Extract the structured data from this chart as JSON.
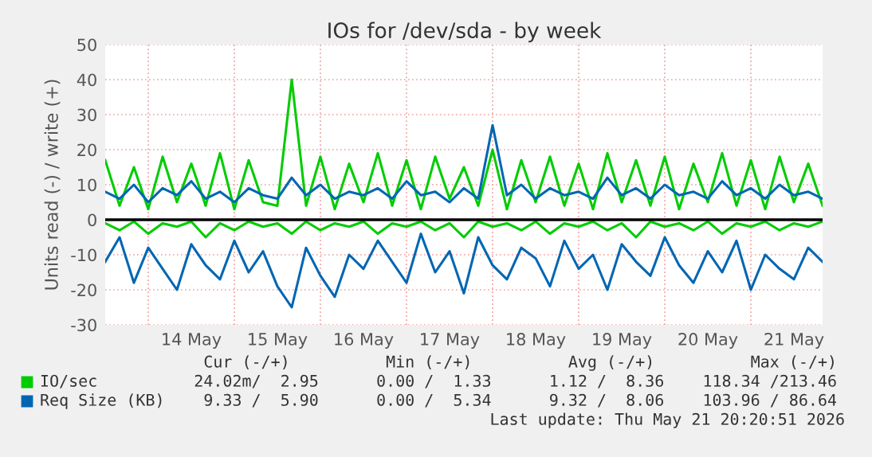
{
  "chart_data": {
    "type": "line",
    "title": "IOs for /dev/sda - by week",
    "ylabel": "Units read (-) / write (+)",
    "x": [
      "2026-05-13T12:00",
      "2026-05-13T16:00",
      "2026-05-13T20:00",
      "2026-05-14T00:00",
      "2026-05-14T04:00",
      "2026-05-14T08:00",
      "2026-05-14T12:00",
      "2026-05-14T16:00",
      "2026-05-14T20:00",
      "2026-05-15T00:00",
      "2026-05-15T04:00",
      "2026-05-15T08:00",
      "2026-05-15T12:00",
      "2026-05-15T16:00",
      "2026-05-15T20:00",
      "2026-05-16T00:00",
      "2026-05-16T04:00",
      "2026-05-16T08:00",
      "2026-05-16T12:00",
      "2026-05-16T16:00",
      "2026-05-16T20:00",
      "2026-05-17T00:00",
      "2026-05-17T04:00",
      "2026-05-17T08:00",
      "2026-05-17T12:00",
      "2026-05-17T16:00",
      "2026-05-17T20:00",
      "2026-05-18T00:00",
      "2026-05-18T04:00",
      "2026-05-18T08:00",
      "2026-05-18T12:00",
      "2026-05-18T16:00",
      "2026-05-18T20:00",
      "2026-05-19T00:00",
      "2026-05-19T04:00",
      "2026-05-19T08:00",
      "2026-05-19T12:00",
      "2026-05-19T16:00",
      "2026-05-19T20:00",
      "2026-05-20T00:00",
      "2026-05-20T04:00",
      "2026-05-20T08:00",
      "2026-05-20T12:00",
      "2026-05-20T16:00",
      "2026-05-20T20:00",
      "2026-05-21T00:00",
      "2026-05-21T04:00",
      "2026-05-21T08:00",
      "2026-05-21T12:00",
      "2026-05-21T16:00",
      "2026-05-21T20:00"
    ],
    "series": [
      {
        "name": "IO/sec",
        "color": "#00cc00",
        "values": [
          17,
          4,
          15,
          3,
          18,
          5,
          16,
          4,
          19,
          3,
          17,
          5,
          4,
          40,
          4,
          18,
          3,
          16,
          5,
          19,
          4,
          17,
          3,
          18,
          6,
          15,
          4,
          20,
          3,
          17,
          5,
          18,
          4,
          16,
          3,
          19,
          5,
          17,
          4,
          18,
          3,
          16,
          5,
          19,
          4,
          17,
          3,
          18,
          5,
          16,
          4
        ]
      },
      {
        "color": "#00cc00",
        "values": [
          -1,
          -3,
          -0.5,
          -4,
          -1,
          -2,
          -0.5,
          -5,
          -1,
          -3,
          -0.5,
          -2,
          -1,
          -4,
          -0.5,
          -3,
          -1,
          -2,
          -0.5,
          -4,
          -1,
          -2,
          -0.5,
          -3,
          -1,
          -5,
          -0.5,
          -2,
          -1,
          -3,
          -0.5,
          -4,
          -1,
          -2,
          -0.5,
          -3,
          -1,
          -5,
          -0.5,
          -2,
          -1,
          -3,
          -0.5,
          -4,
          -1,
          -2,
          -0.5,
          -3,
          -1,
          -2,
          -0.5
        ]
      },
      {
        "name": "Req Size (KB)",
        "color": "#0066b3",
        "values": [
          8,
          6,
          10,
          5,
          9,
          7,
          11,
          6,
          8,
          5,
          9,
          7,
          6,
          12,
          7,
          10,
          6,
          8,
          7,
          9,
          6,
          11,
          7,
          8,
          5,
          9,
          6,
          27,
          7,
          10,
          6,
          9,
          7,
          8,
          6,
          12,
          7,
          9,
          6,
          10,
          7,
          8,
          6,
          11,
          7,
          9,
          6,
          10,
          7,
          8,
          6
        ]
      },
      {
        "color": "#0066b3",
        "values": [
          -12,
          -5,
          -18,
          -8,
          -14,
          -20,
          -7,
          -13,
          -17,
          -6,
          -15,
          -9,
          -19,
          -25,
          -8,
          -16,
          -22,
          -10,
          -14,
          -6,
          -12,
          -18,
          -4,
          -15,
          -9,
          -21,
          -5,
          -13,
          -17,
          -8,
          -11,
          -19,
          -6,
          -14,
          -10,
          -20,
          -7,
          -12,
          -16,
          -5,
          -13,
          -18,
          -9,
          -15,
          -6,
          -20,
          -10,
          -14,
          -17,
          -8,
          -12
        ]
      }
    ],
    "xlim": [
      "2026-05-13T12:00",
      "2026-05-21T20:00"
    ],
    "xticks": [
      {
        "value": "2026-05-14T12:00",
        "label": "14 May"
      },
      {
        "value": "2026-05-15T12:00",
        "label": "15 May"
      },
      {
        "value": "2026-05-16T12:00",
        "label": "16 May"
      },
      {
        "value": "2026-05-17T12:00",
        "label": "17 May"
      },
      {
        "value": "2026-05-18T12:00",
        "label": "18 May"
      },
      {
        "value": "2026-05-19T12:00",
        "label": "19 May"
      },
      {
        "value": "2026-05-20T12:00",
        "label": "20 May"
      },
      {
        "value": "2026-05-21T12:00",
        "label": "21 May"
      }
    ],
    "ylim": [
      -30,
      50
    ],
    "yticks": [
      -30,
      -20,
      -10,
      0,
      10,
      20,
      30,
      40,
      50
    ],
    "ref_lines": [
      {
        "axis": "y",
        "value": 0,
        "color": "#000000"
      }
    ],
    "grid": true,
    "legend": "bottom",
    "annotations": [
      "Cur (-/+)          Min (-/+)          Avg (-/+)          Max (-/+)",
      "24.02m/  2.95      0.00 /  1.33      1.12 /  8.36    118.34 /213.46",
      " 9.33 /  5.90      0.00 /  5.34      9.32 /  8.06    103.96 / 86.64",
      "Last update: Thu May 21 20:20:51 2026"
    ]
  }
}
